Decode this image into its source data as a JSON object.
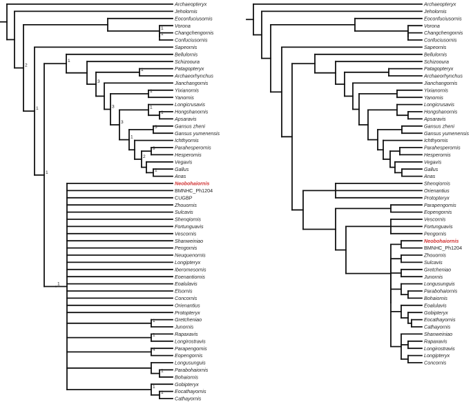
{
  "highlight_color": "#d03030",
  "trees": [
    {
      "name": "left",
      "taxa": [
        {
          "label": "Archaeopteryx",
          "italic": true
        },
        {
          "label": "Jeholornis",
          "italic": true
        },
        {
          "label": "Eoconfuciusornis",
          "italic": true
        },
        {
          "label": "Vorona",
          "italic": true
        },
        {
          "label": "Changchengornis",
          "italic": true
        },
        {
          "label": "Confuciusornis",
          "italic": true
        },
        {
          "label": "Sapeornis",
          "italic": true
        },
        {
          "label": "Bellulornis",
          "italic": true
        },
        {
          "label": "Schizooura",
          "italic": true
        },
        {
          "label": "Patagopteryx",
          "italic": true
        },
        {
          "label": "Archaeorhynchus",
          "italic": true
        },
        {
          "label": "Jianchangornis",
          "italic": true
        },
        {
          "label": "Yixianornis",
          "italic": true
        },
        {
          "label": "Yanornis",
          "italic": true
        },
        {
          "label": "Longicrusavis",
          "italic": true
        },
        {
          "label": "Hongshanornis",
          "italic": true
        },
        {
          "label": "Apsaravis",
          "italic": true
        },
        {
          "label": "Gansus zheni",
          "italic": true
        },
        {
          "label": "Gansus yumenensis",
          "italic": true
        },
        {
          "label": "Ichthyornis",
          "italic": true
        },
        {
          "label": "Parahesperornis",
          "italic": true
        },
        {
          "label": "Hesperornis",
          "italic": true
        },
        {
          "label": "Vegavis",
          "italic": true
        },
        {
          "label": "Gallus",
          "italic": true
        },
        {
          "label": "Anas",
          "italic": true
        },
        {
          "label": "Neobohaiornis",
          "italic": true,
          "highlight": true
        },
        {
          "label": "BMNHC_Ph1204",
          "italic": false
        },
        {
          "label": "CUGBP",
          "italic": false
        },
        {
          "label": "Zhouornis",
          "italic": true
        },
        {
          "label": "Sulcavis",
          "italic": true
        },
        {
          "label": "Shenqiornis",
          "italic": true
        },
        {
          "label": "Fortunguavis",
          "italic": true
        },
        {
          "label": "Vescornis",
          "italic": true
        },
        {
          "label": "Shanweiniao",
          "italic": true
        },
        {
          "label": "Pengornis",
          "italic": true
        },
        {
          "label": "Neuquenornis",
          "italic": true
        },
        {
          "label": "Longipteryx",
          "italic": true
        },
        {
          "label": "Iberomesornis",
          "italic": true
        },
        {
          "label": "Eoenantiornis",
          "italic": true
        },
        {
          "label": "Eoalulavis",
          "italic": true
        },
        {
          "label": "Elsornis",
          "italic": true
        },
        {
          "label": "Concornis",
          "italic": true
        },
        {
          "label": "Orienantius",
          "italic": true
        },
        {
          "label": "Protopteryx",
          "italic": true
        },
        {
          "label": "Gretcheniao",
          "italic": true
        },
        {
          "label": "Junornis",
          "italic": true
        },
        {
          "label": "Rapaxavis",
          "italic": true
        },
        {
          "label": "Longirostravis",
          "italic": true
        },
        {
          "label": "Parapengornis",
          "italic": true
        },
        {
          "label": "Eopengornis",
          "italic": true
        },
        {
          "label": "Longusunguis",
          "italic": true
        },
        {
          "label": "Parabohaiornis",
          "italic": true
        },
        {
          "label": "Bohaiornis",
          "italic": true
        },
        {
          "label": "Gobipteryx",
          "italic": true
        },
        {
          "label": "Eocathayornis",
          "italic": true
        },
        {
          "label": "Cathayornis",
          "italic": true
        }
      ],
      "support_values": [
        "1",
        "1",
        "2",
        "1",
        "1",
        "1",
        "3",
        "1",
        "1",
        "1",
        "1",
        "3",
        "3",
        "1",
        "9",
        "3",
        "2",
        "1",
        "1",
        "1",
        "1",
        "4",
        "1",
        "1",
        "1"
      ]
    },
    {
      "name": "right",
      "taxa": [
        {
          "label": "Archaeopteryx",
          "italic": true
        },
        {
          "label": "Jeholornis",
          "italic": true
        },
        {
          "label": "Eoconfuciusornis",
          "italic": true
        },
        {
          "label": "Vorona",
          "italic": true
        },
        {
          "label": "Changchengornis",
          "italic": true
        },
        {
          "label": "Confuciusornis",
          "italic": true
        },
        {
          "label": "Sapeornis",
          "italic": true
        },
        {
          "label": "Bellulornis",
          "italic": true
        },
        {
          "label": "Schizooura",
          "italic": true
        },
        {
          "label": "Patagopteryx",
          "italic": true
        },
        {
          "label": "Archaeorhynchus",
          "italic": true
        },
        {
          "label": "Jianchangornis",
          "italic": true
        },
        {
          "label": "Yixianornis",
          "italic": true
        },
        {
          "label": "Yanornis",
          "italic": true
        },
        {
          "label": "Longicrusavis",
          "italic": true
        },
        {
          "label": "Hongshanornis",
          "italic": true
        },
        {
          "label": "Apsaravis",
          "italic": true
        },
        {
          "label": "Gansus zheni",
          "italic": true
        },
        {
          "label": "Gansus yumenensis",
          "italic": true
        },
        {
          "label": "Ichthyornis",
          "italic": true
        },
        {
          "label": "Parahesperornis",
          "italic": true
        },
        {
          "label": "Hesperornis",
          "italic": true
        },
        {
          "label": "Vegavis",
          "italic": true
        },
        {
          "label": "Gallus",
          "italic": true
        },
        {
          "label": "Anas",
          "italic": true
        },
        {
          "label": "Shenqiornis",
          "italic": true
        },
        {
          "label": "Orienantius",
          "italic": true
        },
        {
          "label": "Protopteryx",
          "italic": true
        },
        {
          "label": "Parapengornis",
          "italic": true
        },
        {
          "label": "Eopengornis",
          "italic": true
        },
        {
          "label": "Vescornis",
          "italic": true
        },
        {
          "label": "Fortunguavis",
          "italic": true
        },
        {
          "label": "Pengornis",
          "italic": true
        },
        {
          "label": "Neobohaiornis",
          "italic": true,
          "highlight": true
        },
        {
          "label": "BMNHC_Ph1204",
          "italic": false
        },
        {
          "label": "Zhouornis",
          "italic": true
        },
        {
          "label": "Sulcavis",
          "italic": true
        },
        {
          "label": "Gretcheniao",
          "italic": true
        },
        {
          "label": "Junornis",
          "italic": true
        },
        {
          "label": "Longusunguis",
          "italic": true
        },
        {
          "label": "Parabohaiornis",
          "italic": true
        },
        {
          "label": "Bohaiornis",
          "italic": true
        },
        {
          "label": "Eoalulavis",
          "italic": true
        },
        {
          "label": "Gobipteryx",
          "italic": true
        },
        {
          "label": "Eocathayornis",
          "italic": true
        },
        {
          "label": "Cathayornis",
          "italic": true
        },
        {
          "label": "Shanweiniao",
          "italic": true
        },
        {
          "label": "Rapaxavis",
          "italic": true
        },
        {
          "label": "Longirostravis",
          "italic": true
        },
        {
          "label": "Longipteryx",
          "italic": true
        },
        {
          "label": "Concornis",
          "italic": true
        }
      ],
      "support_values": []
    }
  ]
}
